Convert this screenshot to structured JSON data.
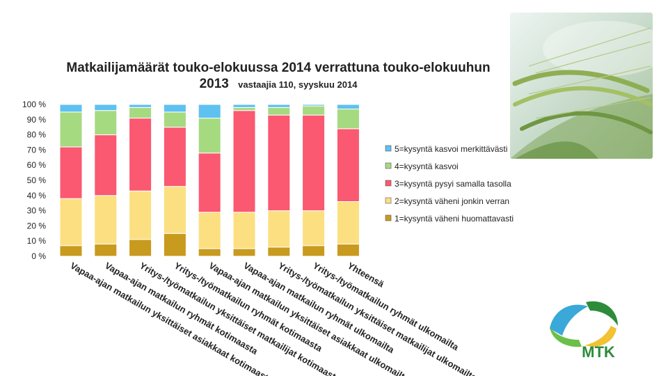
{
  "chart_data": {
    "type": "bar",
    "stacked": true,
    "percent": true,
    "title": "Matkailijamäärät touko-elokuussa 2014 verrattuna touko-elokuuhun 2013",
    "subtitle": "vastaajia 110, syyskuu 2014",
    "xlabel": "",
    "ylabel": "",
    "ylim": [
      0,
      100
    ],
    "yticks": [
      "0 %",
      "10 %",
      "20 %",
      "30 %",
      "40 %",
      "50 %",
      "60 %",
      "70 %",
      "80 %",
      "90 %",
      "100 %"
    ],
    "grid": false,
    "legend_position": "right",
    "categories": [
      "Vapaa-ajan matkailun yksittäiset asiakkaat kotimaasta",
      "Vapaa-ajan matkailun ryhmät kotimaasta",
      "Yritys-/työmatkailun yksittäiset matkailijat kotimaasta",
      "Yritys-/työmatkailun ryhmät kotimaasta",
      "Vapaa-ajan matkailun yksittäiset asiakkaat ulkomailta",
      "Vapaa-ajan matkailun ryhmät ulkomailta",
      "Yritys-/työmatkailun yksittäiset matkailijat ulkomailta",
      "Yritys-/työmatkailun ryhmät ulkomailta",
      "Yhteensä"
    ],
    "series": [
      {
        "name": "1=kysyntä väheni huomattavasti",
        "color": "#c89a1e",
        "values": [
          7,
          8,
          11,
          15,
          5,
          5,
          6,
          7,
          8
        ]
      },
      {
        "name": "2=kysyntä väheni jonkin verran",
        "color": "#fcdf80",
        "values": [
          31,
          32,
          32,
          31,
          24,
          24,
          24,
          23,
          28
        ]
      },
      {
        "name": "3=kysyntä pysyi samalla tasolla",
        "color": "#fb5871",
        "values": [
          34,
          40,
          48,
          39,
          39,
          67,
          63,
          63,
          48
        ]
      },
      {
        "name": "4=kysyntä kasvoi",
        "color": "#a6da81",
        "values": [
          23,
          16,
          7,
          10,
          23,
          2,
          5,
          6,
          13
        ]
      },
      {
        "name": "5=kysyntä kasvoi merkittävästi",
        "color": "#5ec1f0",
        "values": [
          5,
          4,
          2,
          5,
          9,
          2,
          2,
          1,
          3
        ]
      }
    ]
  },
  "branding": {
    "logo_text": "MTK",
    "logo_color": "#2e8b3a"
  }
}
